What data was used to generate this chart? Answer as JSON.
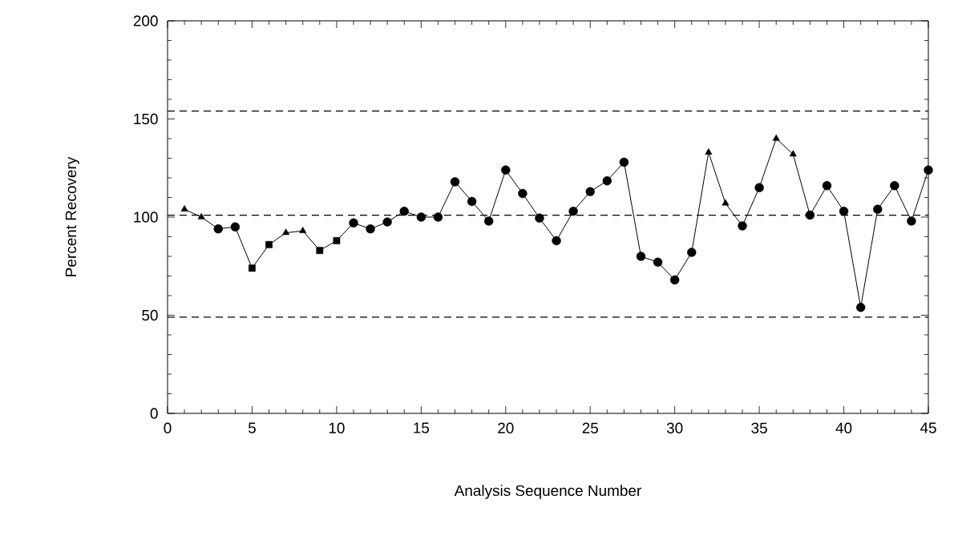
{
  "chart_data": {
    "type": "line",
    "xlabel": "Analysis Sequence Number",
    "ylabel": "Percent Recovery",
    "x": [
      1,
      2,
      3,
      4,
      5,
      6,
      7,
      8,
      9,
      10,
      11,
      12,
      13,
      14,
      15,
      16,
      17,
      18,
      19,
      20,
      21,
      22,
      23,
      24,
      25,
      26,
      27,
      28,
      29,
      30,
      31,
      32,
      33,
      34,
      35,
      36,
      37,
      38,
      39,
      40,
      41,
      42,
      43,
      44,
      45
    ],
    "series": [
      {
        "color": "#000000",
        "marker": "none",
        "line_style": "solid",
        "values": [
          104,
          100,
          94,
          95,
          74,
          86,
          92,
          93,
          83,
          88,
          97,
          94,
          97.5,
          103,
          100,
          100,
          118,
          108,
          98,
          124,
          112,
          99.5,
          88,
          103,
          113,
          118.5,
          128,
          80,
          77,
          68,
          82,
          133,
          107,
          95.5,
          115,
          140,
          132,
          101,
          116,
          103,
          54,
          104,
          116,
          98,
          124
        ]
      },
      {
        "type": "scatter",
        "color": "#000000",
        "marker": "triangle",
        "x": [
          1,
          2,
          7,
          8,
          32,
          33,
          36,
          37
        ],
        "values": [
          104,
          100,
          92,
          93,
          133,
          107,
          140,
          132
        ]
      },
      {
        "type": "scatter",
        "color": "#000000",
        "marker": "square",
        "x": [
          5,
          6,
          9,
          10
        ],
        "values": [
          74,
          86,
          83,
          88
        ]
      },
      {
        "type": "scatter",
        "color": "#000000",
        "marker": "circle",
        "x": [
          3,
          4,
          11,
          12,
          13,
          14,
          15,
          16,
          17,
          18,
          19,
          20,
          21,
          22,
          23,
          24,
          25,
          26,
          27,
          28,
          29,
          30,
          31,
          34,
          35,
          38,
          39,
          40,
          41,
          42,
          43,
          44,
          45
        ],
        "values": [
          94,
          95,
          97,
          94,
          97.5,
          103,
          100,
          100,
          118,
          108,
          98,
          124,
          112,
          99.5,
          88,
          103,
          113,
          118.5,
          128,
          80,
          77,
          68,
          82,
          95.5,
          115,
          101,
          116,
          103,
          54,
          104,
          116,
          98,
          124
        ]
      }
    ],
    "xlim": [
      0,
      45
    ],
    "xticks": [
      0,
      5,
      10,
      15,
      20,
      25,
      30,
      35,
      40,
      45
    ],
    "ylim": [
      0,
      200
    ],
    "yticks": [
      0,
      50,
      100,
      150,
      200
    ],
    "ref_lines": [
      {
        "axis": "y",
        "value": 154,
        "line_style": "dashed",
        "color": "#000000"
      },
      {
        "axis": "y",
        "value": 101,
        "line_style": "dashed",
        "color": "#000000"
      },
      {
        "axis": "y",
        "value": 49,
        "line_style": "dashed",
        "color": "#000000"
      }
    ],
    "grid": false
  }
}
